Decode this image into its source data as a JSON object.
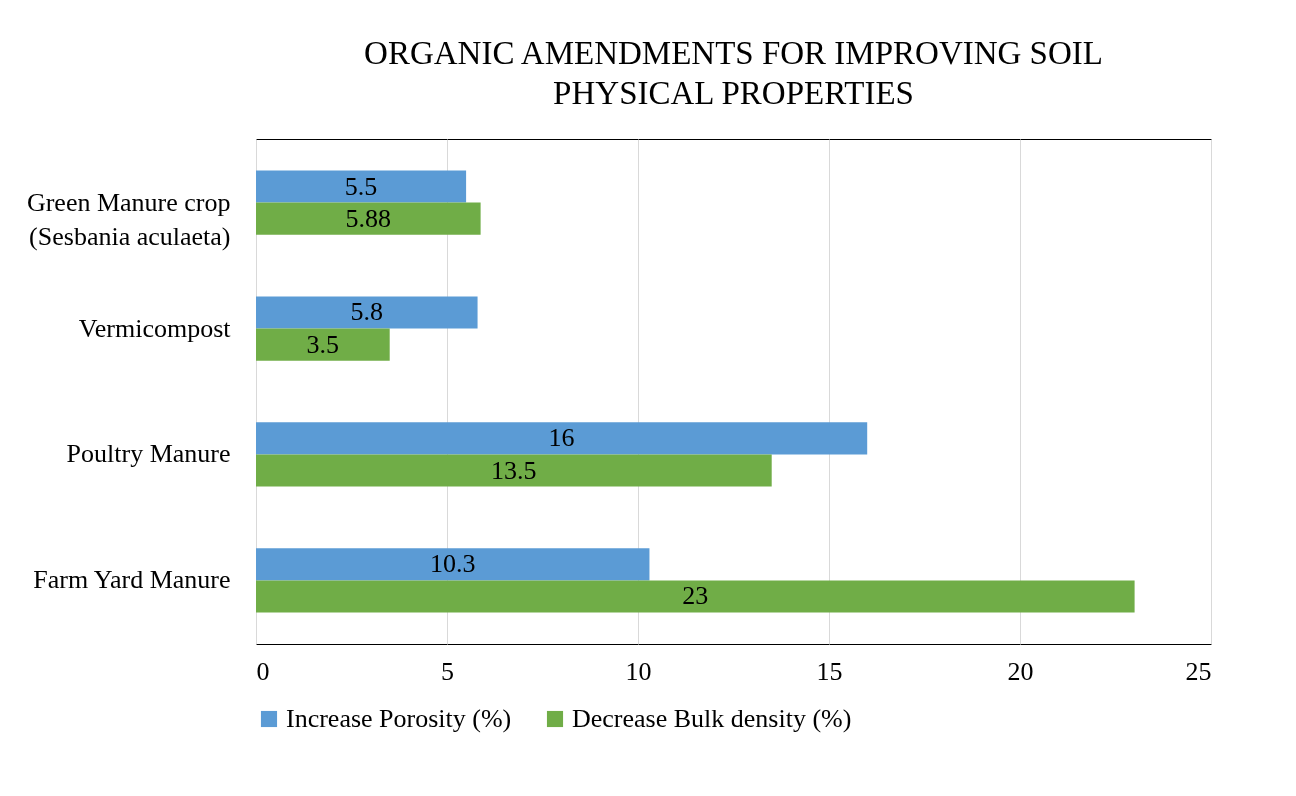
{
  "chart_data": {
    "type": "bar",
    "orientation": "horizontal",
    "title": "ORGANIC AMENDMENTS FOR IMPROVING SOIL PHYSICAL PROPERTIES",
    "categories": [
      "Green Manure crop (Sesbania aculaeta)",
      "Vermicompost",
      "Poultry Manure",
      "Farm Yard Manure"
    ],
    "series": [
      {
        "name": "Increase Porosity (%)",
        "color": "#5b9bd5",
        "values": [
          5.5,
          5.8,
          16,
          10.3
        ]
      },
      {
        "name": "Decrease Bulk density (%)",
        "color": "#70ad47",
        "values": [
          5.88,
          3.5,
          13.5,
          23
        ]
      }
    ],
    "xlim": [
      0,
      25
    ],
    "xticks": [
      0,
      5,
      10,
      15,
      20,
      25
    ],
    "grid": "x",
    "legend": "bottom",
    "data_labels": true
  }
}
